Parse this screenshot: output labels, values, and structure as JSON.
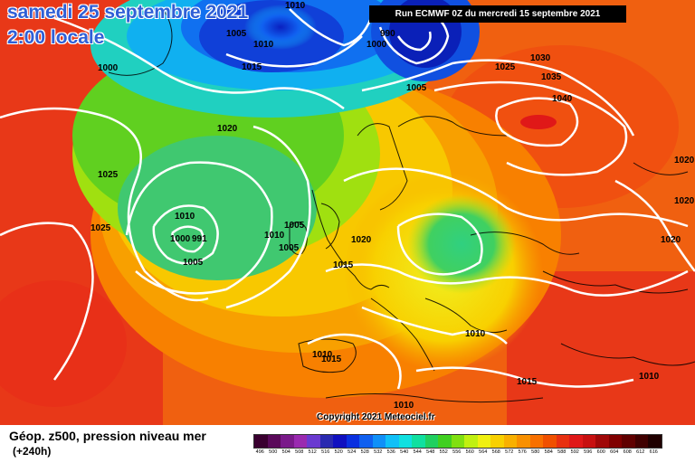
{
  "title": {
    "date": "samedi 25 septembre 2021",
    "time": "2:00 locale"
  },
  "run_info": "Run ECMWF 0Z du mercredi 15 septembre 2021",
  "copyright": "Copyright 2021 Meteociel.fr",
  "legend": {
    "title": "Géop. z500, pression niveau mer",
    "subtitle": "(+240h)",
    "scale_values": [
      "496",
      "500",
      "504",
      "508",
      "512",
      "516",
      "520",
      "524",
      "528",
      "532",
      "536",
      "540",
      "544",
      "548",
      "552",
      "556",
      "560",
      "564",
      "568",
      "572",
      "576",
      "580",
      "584",
      "588",
      "592",
      "596",
      "600",
      "604",
      "608",
      "612",
      "616"
    ],
    "scale_colors": [
      "#3a0030",
      "#5a0a5a",
      "#7a1a8a",
      "#9a2ab0",
      "#6a3ad0",
      "#2a2ab0",
      "#1010c0",
      "#0a30e0",
      "#1060f0",
      "#1090f8",
      "#10c0f8",
      "#10e0e0",
      "#10e0a0",
      "#20d060",
      "#40d020",
      "#80e010",
      "#c0f010",
      "#f0f010",
      "#f8d000",
      "#f8b000",
      "#f89000",
      "#f87000",
      "#f05000",
      "#e83010",
      "#e01818",
      "#c81010",
      "#a00808",
      "#800000",
      "#600000",
      "#400000",
      "#200000"
    ]
  },
  "pressure_labels": [
    "1005",
    "1010",
    "1015",
    "1010",
    "1000",
    "1000",
    "990",
    "1005",
    "1025",
    "1030",
    "1035",
    "1040",
    "1020",
    "1025",
    "1025",
    "1010",
    "1000",
    "991",
    "1005",
    "1005",
    "1010",
    "1005",
    "1020",
    "1015",
    "1020",
    "1020",
    "1010",
    "1015",
    "1015",
    "1010",
    "1010",
    "1020",
    "1010"
  ]
}
